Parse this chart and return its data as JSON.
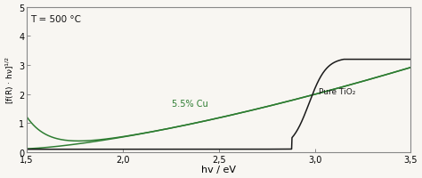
{
  "title": "T = 500 °C",
  "xlabel": "hv / eV",
  "ylabel": "[f(R) · hv]$^{1/2}$",
  "xlim": [
    1.5,
    3.5
  ],
  "ylim": [
    0,
    5
  ],
  "yticks": [
    0,
    1,
    2,
    3,
    4,
    5
  ],
  "xtick_vals": [
    1.5,
    2.0,
    2.5,
    3.0,
    3.5
  ],
  "xtick_labels": [
    "1,5",
    "2,0",
    "2,5",
    "3,0",
    "3,5"
  ],
  "green_label": "5.5% Cu",
  "black_label": "Pure TiO₂",
  "green_color": "#2e7d32",
  "black_color": "#1a1a1a",
  "background": "#f8f6f2",
  "spine_color": "#aaaaaa"
}
